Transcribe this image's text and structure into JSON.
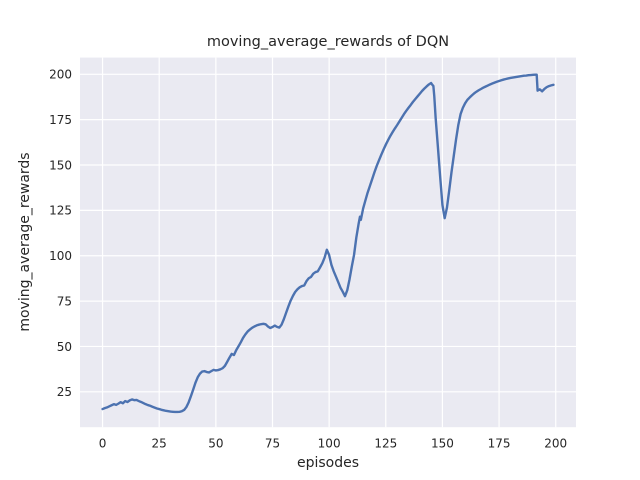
{
  "figure": {
    "title": "moving_average_rewards of DQN"
  },
  "chart_data": {
    "type": "line",
    "title": "moving_average_rewards of DQN",
    "xlabel": "episodes",
    "ylabel": "moving_average_rewards",
    "xlim": [
      -9.95,
      208.95
    ],
    "ylim": [
      5.5,
      209.2
    ],
    "xticks": [
      0,
      25,
      50,
      75,
      100,
      125,
      150,
      175,
      200
    ],
    "yticks": [
      25,
      50,
      75,
      100,
      125,
      150,
      175,
      200
    ],
    "grid": true,
    "legend_position": "none",
    "line_color": "#4C72B0",
    "axes_bg_color": "#EAEAF2",
    "grid_color": "#FFFFFF",
    "text_color": "#262626",
    "figure_bg_color": "#FFFFFF",
    "series": [
      {
        "name": "moving_average_rewards",
        "points": [
          [
            0,
            15.5
          ],
          [
            1,
            16.0
          ],
          [
            2,
            16.4
          ],
          [
            3,
            17.0
          ],
          [
            4,
            17.6
          ],
          [
            5,
            18.2
          ],
          [
            6,
            17.8
          ],
          [
            7,
            18.5
          ],
          [
            8,
            19.3
          ],
          [
            9,
            18.7
          ],
          [
            10,
            19.9
          ],
          [
            11,
            19.4
          ],
          [
            12,
            20.3
          ],
          [
            13,
            20.8
          ],
          [
            14,
            20.4
          ],
          [
            15,
            20.5
          ],
          [
            16,
            19.9
          ],
          [
            17,
            19.4
          ],
          [
            18,
            18.8
          ],
          [
            19,
            18.2
          ],
          [
            20,
            17.7
          ],
          [
            21,
            17.3
          ],
          [
            22,
            16.8
          ],
          [
            23,
            16.3
          ],
          [
            24,
            15.8
          ],
          [
            25,
            15.5
          ],
          [
            26,
            15.1
          ],
          [
            27,
            14.8
          ],
          [
            28,
            14.5
          ],
          [
            29,
            14.3
          ],
          [
            30,
            14.1
          ],
          [
            31,
            14.0
          ],
          [
            32,
            13.9
          ],
          [
            33,
            13.9
          ],
          [
            34,
            14.0
          ],
          [
            35,
            14.3
          ],
          [
            36,
            15.0
          ],
          [
            37,
            16.6
          ],
          [
            38,
            19.2
          ],
          [
            39,
            22.6
          ],
          [
            40,
            26.2
          ],
          [
            41,
            30.0
          ],
          [
            42,
            33.0
          ],
          [
            43,
            35.0
          ],
          [
            44,
            36.2
          ],
          [
            45,
            36.4
          ],
          [
            46,
            35.9
          ],
          [
            47,
            35.7
          ],
          [
            48,
            36.4
          ],
          [
            49,
            37.1
          ],
          [
            50,
            36.8
          ],
          [
            51,
            37.0
          ],
          [
            52,
            37.4
          ],
          [
            53,
            38.0
          ],
          [
            54,
            39.3
          ],
          [
            55,
            41.5
          ],
          [
            56,
            43.8
          ],
          [
            57,
            45.9
          ],
          [
            58,
            45.3
          ],
          [
            59,
            48.0
          ],
          [
            60,
            50.1
          ],
          [
            61,
            52.3
          ],
          [
            62,
            54.7
          ],
          [
            63,
            56.6
          ],
          [
            64,
            58.2
          ],
          [
            65,
            59.3
          ],
          [
            66,
            60.3
          ],
          [
            67,
            61.0
          ],
          [
            68,
            61.6
          ],
          [
            69,
            62.0
          ],
          [
            70,
            62.3
          ],
          [
            71,
            62.5
          ],
          [
            72,
            62.2
          ],
          [
            73,
            61.0
          ],
          [
            74,
            60.2
          ],
          [
            75,
            60.7
          ],
          [
            76,
            61.5
          ],
          [
            77,
            60.8
          ],
          [
            78,
            60.4
          ],
          [
            79,
            62.0
          ],
          [
            80,
            65.0
          ],
          [
            81,
            68.5
          ],
          [
            82,
            72.0
          ],
          [
            83,
            75.2
          ],
          [
            84,
            77.8
          ],
          [
            85,
            80.0
          ],
          [
            86,
            81.5
          ],
          [
            87,
            82.6
          ],
          [
            88,
            83.3
          ],
          [
            89,
            83.6
          ],
          [
            90,
            86.0
          ],
          [
            91,
            87.6
          ],
          [
            92,
            88.3
          ],
          [
            93,
            90.1
          ],
          [
            94,
            91.0
          ],
          [
            95,
            91.4
          ],
          [
            96,
            93.6
          ],
          [
            97,
            95.9
          ],
          [
            98,
            99.0
          ],
          [
            99,
            103.3
          ],
          [
            100,
            100.4
          ],
          [
            101,
            95.0
          ],
          [
            102,
            91.5
          ],
          [
            103,
            88.5
          ],
          [
            104,
            85.5
          ],
          [
            105,
            82.4
          ],
          [
            106,
            80.2
          ],
          [
            107,
            77.7
          ],
          [
            108,
            81.0
          ],
          [
            109,
            87.0
          ],
          [
            110,
            94.0
          ],
          [
            111,
            100.5
          ],
          [
            112,
            110.0
          ],
          [
            113,
            117.5
          ],
          [
            113.6,
            121.5
          ],
          [
            114,
            119.8
          ],
          [
            115,
            126.0
          ],
          [
            116,
            130.5
          ],
          [
            117,
            134.8
          ],
          [
            118,
            138.5
          ],
          [
            119,
            142.2
          ],
          [
            120,
            146.0
          ],
          [
            121,
            149.5
          ],
          [
            122,
            152.6
          ],
          [
            123,
            155.6
          ],
          [
            124,
            158.5
          ],
          [
            125,
            161.2
          ],
          [
            126,
            163.7
          ],
          [
            127,
            166.0
          ],
          [
            128,
            168.1
          ],
          [
            129,
            170.1
          ],
          [
            130,
            172.0
          ],
          [
            131,
            174.0
          ],
          [
            132,
            176.0
          ],
          [
            133,
            178.0
          ],
          [
            134,
            179.8
          ],
          [
            135,
            181.5
          ],
          [
            136,
            183.1
          ],
          [
            137,
            184.8
          ],
          [
            138,
            186.3
          ],
          [
            139,
            187.8
          ],
          [
            140,
            189.3
          ],
          [
            141,
            190.8
          ],
          [
            142,
            192.1
          ],
          [
            143,
            193.3
          ],
          [
            144,
            194.4
          ],
          [
            145,
            195.2
          ],
          [
            145.6,
            194.1
          ],
          [
            146,
            193.6
          ],
          [
            146.4,
            188.0
          ],
          [
            147,
            176.0
          ],
          [
            148,
            160.0
          ],
          [
            149,
            143.5
          ],
          [
            150,
            128.0
          ],
          [
            151,
            120.7
          ],
          [
            152,
            126.5
          ],
          [
            153,
            136.0
          ],
          [
            154,
            146.0
          ],
          [
            155,
            155.0
          ],
          [
            156,
            164.0
          ],
          [
            157,
            172.0
          ],
          [
            158,
            178.0
          ],
          [
            159,
            181.5
          ],
          [
            160,
            184.0
          ],
          [
            161,
            185.9
          ],
          [
            162,
            187.2
          ],
          [
            163,
            188.4
          ],
          [
            164,
            189.5
          ],
          [
            165,
            190.4
          ],
          [
            166,
            191.2
          ],
          [
            167,
            191.9
          ],
          [
            168,
            192.6
          ],
          [
            169,
            193.2
          ],
          [
            170,
            193.8
          ],
          [
            171,
            194.4
          ],
          [
            172,
            194.9
          ],
          [
            173,
            195.4
          ],
          [
            174,
            195.9
          ],
          [
            175,
            196.3
          ],
          [
            176,
            196.7
          ],
          [
            177,
            197.1
          ],
          [
            178,
            197.4
          ],
          [
            179,
            197.7
          ],
          [
            180,
            198.0
          ],
          [
            181,
            198.2
          ],
          [
            182,
            198.4
          ],
          [
            183,
            198.6
          ],
          [
            184,
            198.8
          ],
          [
            185,
            199.0
          ],
          [
            186,
            199.2
          ],
          [
            187,
            199.3
          ],
          [
            188,
            199.5
          ],
          [
            189,
            199.6
          ],
          [
            190,
            199.7
          ],
          [
            191,
            199.8
          ],
          [
            191.6,
            199.8
          ],
          [
            192,
            191.0
          ],
          [
            193,
            191.7
          ],
          [
            194,
            190.6
          ],
          [
            195,
            191.9
          ],
          [
            196,
            192.9
          ],
          [
            197,
            193.5
          ],
          [
            198,
            193.9
          ],
          [
            199,
            194.2
          ]
        ]
      }
    ]
  }
}
